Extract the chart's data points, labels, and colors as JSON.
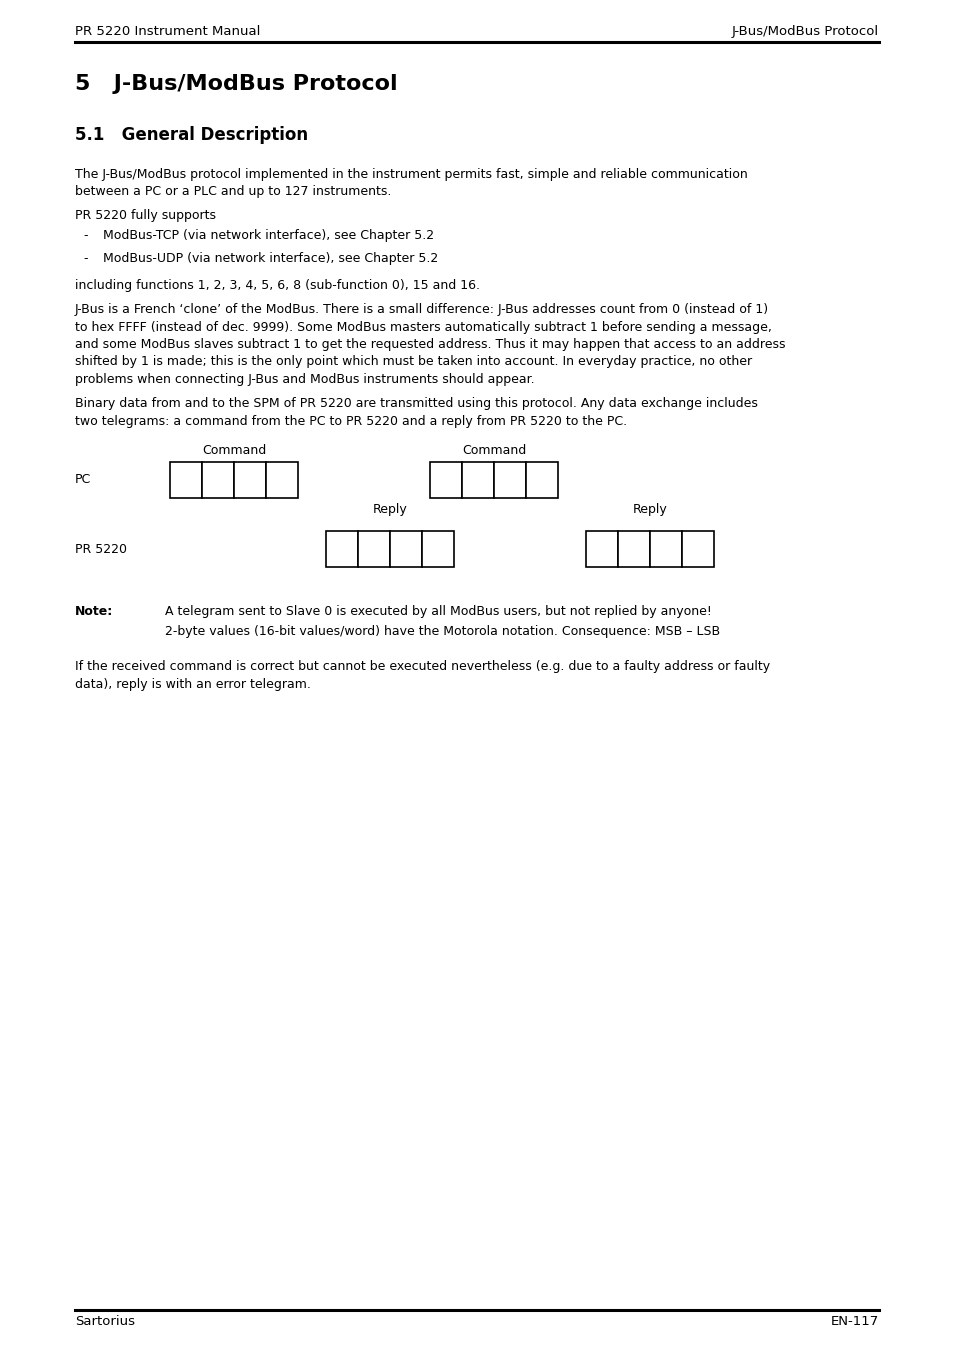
{
  "header_left": "PR 5220 Instrument Manual",
  "header_right": "J-Bus/ModBus Protocol",
  "footer_left": "Sartorius",
  "footer_right": "EN-117",
  "chapter_title": "5   J-Bus/ModBus Protocol",
  "section_title": "5.1   General Description",
  "p1_lines": [
    "The J-Bus/ModBus protocol implemented in the instrument permits fast, simple and reliable communication",
    "between a PC or a PLC and up to 127 instruments."
  ],
  "p2": "PR 5220 fully supports",
  "bullets": [
    "ModBus-TCP (via network interface), see Chapter 5.2",
    "ModBus-UDP (via network interface), see Chapter 5.2"
  ],
  "p3": "including functions 1, 2, 3, 4, 5, 6, 8 (sub-function 0), 15 and 16.",
  "p4_lines": [
    "J-Bus is a French ‘clone’ of the ModBus. There is a small difference: J-Bus addresses count from 0 (instead of 1)",
    "to hex FFFF (instead of dec. 9999). Some ModBus masters automatically subtract 1 before sending a message,",
    "and some ModBus slaves subtract 1 to get the requested address. Thus it may happen that access to an address",
    "shifted by 1 is made; this is the only point which must be taken into account. In everyday practice, no other",
    "problems when connecting J-Bus and ModBus instruments should appear."
  ],
  "p5_lines": [
    "Binary data from and to the SPM of PR 5220 are transmitted using this protocol. Any data exchange includes",
    "two telegrams: a command from the PC to PR 5220 and a reply from PR 5220 to the PC."
  ],
  "note_label": "Note:",
  "note_line1": "A telegram sent to Slave 0 is executed by all ModBus users, but not replied by anyone!",
  "note_line2": "2-byte values (16-bit values/word) have the Motorola notation. Consequence: MSB – LSB",
  "p6_lines": [
    "If the received command is correct but cannot be executed nevertheless (e.g. due to a faulty address or faulty",
    "data), reply is with an error telegram."
  ],
  "bg_color": "#ffffff"
}
